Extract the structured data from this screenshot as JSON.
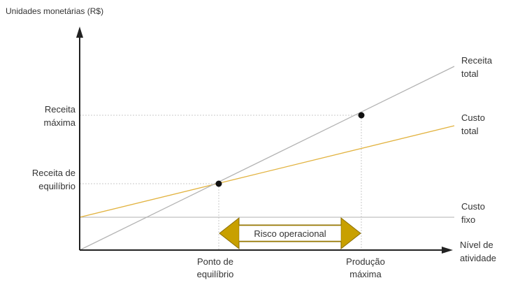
{
  "diagram": {
    "y_axis_title": "Unidades monetárias (R$)",
    "x_axis_title": [
      "Nível de",
      "atividade"
    ],
    "y_ticks": {
      "receita_maxima": [
        "Receita",
        "máxima"
      ],
      "receita_equilibrio": [
        "Receita de",
        "equilíbrio"
      ]
    },
    "x_ticks": {
      "ponto_equilibrio": [
        "Ponto de",
        "equilíbrio"
      ],
      "producao_maxima": [
        "Produção",
        "máxima"
      ]
    },
    "lines": {
      "receita_total": {
        "label": [
          "Receita",
          "total"
        ],
        "color": "#b3b3b3"
      },
      "custo_total": {
        "label": [
          "Custo",
          "total"
        ],
        "color": "#e2b340"
      },
      "custo_fixo": {
        "label": [
          "Custo",
          "fixo"
        ],
        "color": "#c0c0c0"
      }
    },
    "risk_arrow": {
      "label": "Risco operacional",
      "fill_color": "#c8a000"
    },
    "axis_color": "#222222",
    "guide_color": "#c8c8c8"
  }
}
